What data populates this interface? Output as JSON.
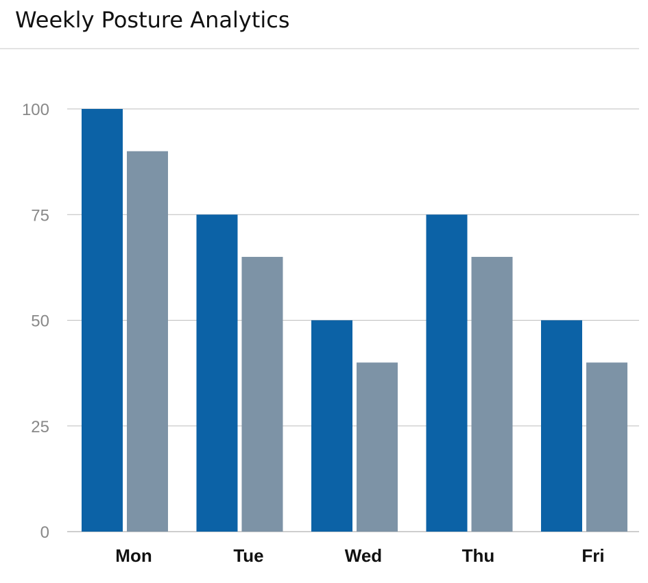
{
  "header": {
    "title": "Weekly Posture Analytics"
  },
  "colors": {
    "series_primary": "#0c62a6",
    "series_secondary": "#7d93a6",
    "grid": "#bdbdbd",
    "tick_text": "#888888"
  },
  "chart_data": {
    "type": "bar",
    "title": "Weekly Posture Analytics",
    "xlabel": "",
    "ylabel": "",
    "categories": [
      "Mon",
      "Tue",
      "Wed",
      "Thu",
      "Fri"
    ],
    "series": [
      {
        "values": [
          100,
          75,
          50,
          75,
          50
        ]
      },
      {
        "values": [
          90,
          65,
          40,
          65,
          40
        ]
      }
    ],
    "ylim": [
      0,
      100
    ],
    "yticks": [
      0,
      25,
      50,
      75,
      100
    ],
    "grid": true,
    "legend": "none"
  }
}
